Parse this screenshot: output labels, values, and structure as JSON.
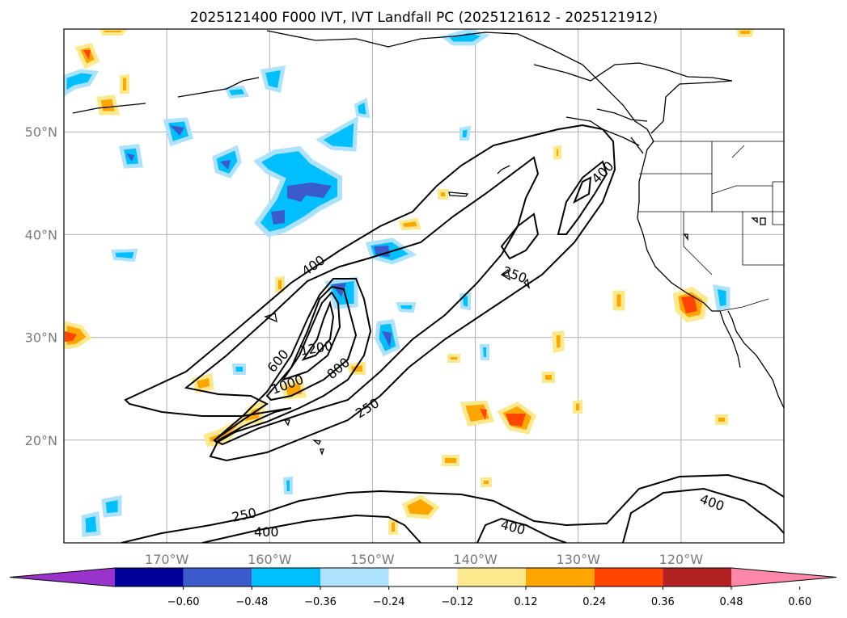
{
  "title": "2025121400 F000 IVT, IVT Landfall PC (2025121612 - 2025121912)",
  "map": {
    "lon_range": [
      -180,
      -110
    ],
    "lat_range": [
      10,
      60
    ],
    "lon_ticks": [
      {
        "value": -170,
        "label": "170°W"
      },
      {
        "value": -160,
        "label": "160°W"
      },
      {
        "value": -150,
        "label": "150°W"
      },
      {
        "value": -140,
        "label": "140°W"
      },
      {
        "value": -130,
        "label": "130°W"
      },
      {
        "value": -120,
        "label": "120°W"
      }
    ],
    "lat_ticks": [
      {
        "value": 20,
        "label": "20°N"
      },
      {
        "value": 30,
        "label": "30°N"
      },
      {
        "value": 40,
        "label": "40°N"
      },
      {
        "value": 50,
        "label": "50°N"
      }
    ],
    "grid": true
  },
  "ivt_contour_labels": [
    "400",
    "250",
    "600",
    "1200",
    "800",
    "1000",
    "250",
    "250",
    "400",
    "400",
    "400"
  ],
  "colorbar": {
    "ticks": [
      "−0.60",
      "−0.48",
      "−0.36",
      "−0.24",
      "−0.12",
      "0.12",
      "0.24",
      "0.36",
      "0.48",
      "0.60"
    ],
    "bins": [
      {
        "color": "#9933cc"
      },
      {
        "color": "#000099"
      },
      {
        "color": "#3b5bcc"
      },
      {
        "color": "#00bfff"
      },
      {
        "color": "#ade2ff"
      },
      {
        "color": "#ffffff"
      },
      {
        "color": "#fde98d"
      },
      {
        "color": "#ffa500"
      },
      {
        "color": "#ff4500"
      },
      {
        "color": "#b22222"
      },
      {
        "color": "#ff88aa"
      }
    ]
  }
}
